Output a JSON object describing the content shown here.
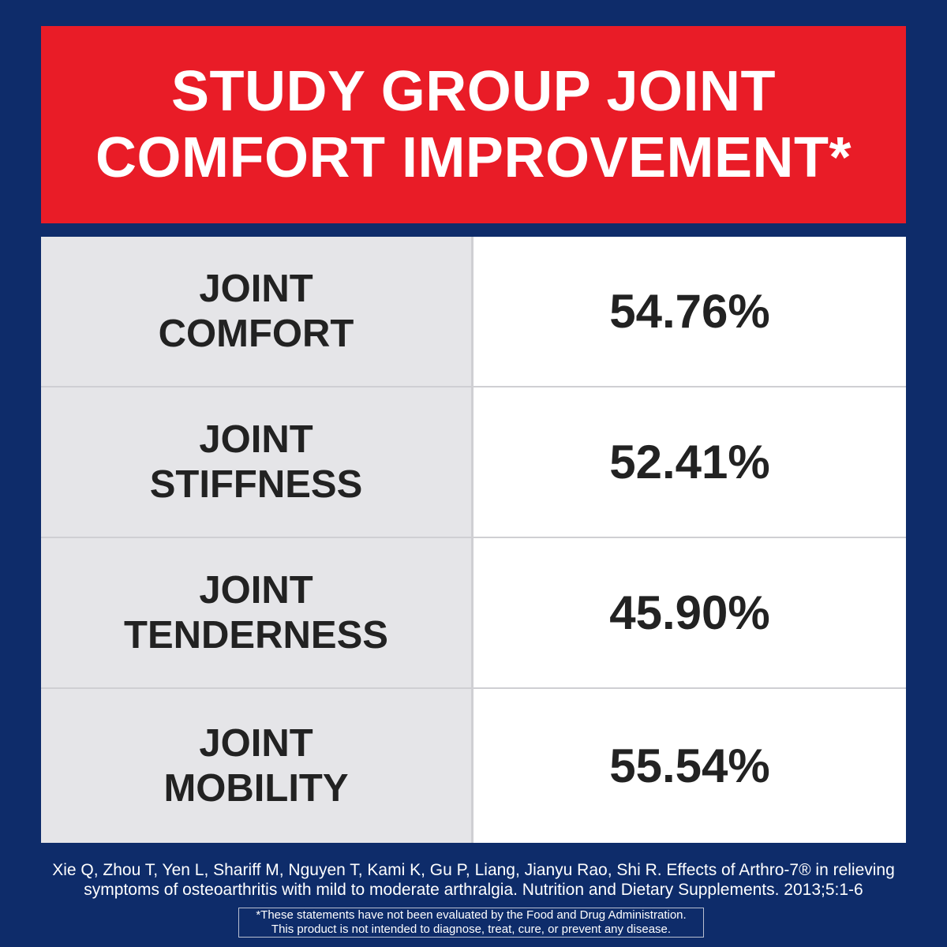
{
  "header": {
    "title": "STUDY GROUP JOINT COMFORT IMPROVEMENT*"
  },
  "table": {
    "rows": [
      [
        "JOINT COMFORT",
        "54.76%"
      ],
      [
        "JOINT STIFFNESS",
        "52.41%"
      ],
      [
        "JOINT TENDERNESS",
        "45.90%"
      ],
      [
        "JOINT MOBILITY",
        "55.54%"
      ]
    ]
  },
  "footer": {
    "citation": "Xie Q, Zhou T, Yen L, Shariff M, Nguyen T, Kami K, Gu P, Liang, Jianyu Rao, Shi R. Effects of Arthro-7® in relieving symptoms of osteoarthritis with mild to moderate arthralgia. Nutrition and Dietary Supplements. 2013;5:1-6",
    "disclaimer": [
      "*These statements have not been evaluated by the Food and Drug Administration.",
      "This product is not intended to diagnose, treat, cure, or prevent any disease."
    ]
  }
}
